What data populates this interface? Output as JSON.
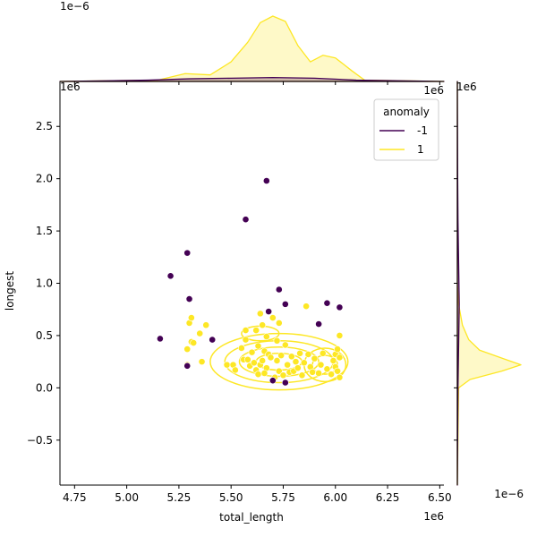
{
  "chart_data": {
    "type": "scatter",
    "title": "",
    "xlabel": "total_length",
    "ylabel": "longest",
    "x_offset_label": "1e6",
    "y_offset_label": "1e6",
    "top_marginal_offset_label": "1e−6",
    "right_marginal_offset_label": "1e−6",
    "right_marginal_top_label": "1e6",
    "xlim": [
      4.68,
      6.52
    ],
    "ylim": [
      -0.93,
      2.93
    ],
    "x_ticks": [
      4.75,
      5.0,
      5.25,
      5.5,
      5.75,
      6.0,
      6.25,
      6.5
    ],
    "x_tick_labels": [
      "4.75",
      "5.00",
      "5.25",
      "5.50",
      "5.75",
      "6.00",
      "6.25",
      "6.50"
    ],
    "y_ticks": [
      -0.5,
      0.0,
      0.5,
      1.0,
      1.5,
      2.0,
      2.5
    ],
    "y_tick_labels": [
      "−0.5",
      "0.0",
      "0.5",
      "1.0",
      "1.5",
      "2.0",
      "2.5"
    ],
    "legend": {
      "title": "anomaly",
      "placement": "top-right",
      "entries": [
        {
          "label": "-1",
          "color": "#440154"
        },
        {
          "label": "1",
          "color": "#fde725"
        }
      ]
    },
    "series": [
      {
        "name": "-1",
        "color": "#440154",
        "points": [
          [
            5.16,
            0.47
          ],
          [
            5.21,
            1.07
          ],
          [
            5.29,
            1.29
          ],
          [
            5.3,
            0.85
          ],
          [
            5.41,
            0.46
          ],
          [
            5.57,
            1.61
          ],
          [
            5.67,
            1.98
          ],
          [
            5.68,
            0.73
          ],
          [
            5.73,
            0.94
          ],
          [
            5.76,
            0.8
          ],
          [
            5.92,
            0.61
          ],
          [
            5.96,
            0.81
          ],
          [
            6.02,
            0.77
          ],
          [
            5.7,
            0.07
          ],
          [
            5.76,
            0.05
          ],
          [
            5.29,
            0.21
          ]
        ]
      },
      {
        "name": "1",
        "color": "#fde725",
        "points": [
          [
            5.29,
            0.22
          ],
          [
            5.29,
            0.37
          ],
          [
            5.3,
            0.62
          ],
          [
            5.31,
            0.67
          ],
          [
            5.31,
            0.44
          ],
          [
            5.32,
            0.43
          ],
          [
            5.35,
            0.52
          ],
          [
            5.36,
            0.25
          ],
          [
            5.38,
            0.6
          ],
          [
            5.48,
            0.22
          ],
          [
            5.51,
            0.22
          ],
          [
            5.52,
            0.17
          ],
          [
            5.55,
            0.38
          ],
          [
            5.56,
            0.27
          ],
          [
            5.57,
            0.46
          ],
          [
            5.58,
            0.27
          ],
          [
            5.59,
            0.21
          ],
          [
            5.6,
            0.34
          ],
          [
            5.61,
            0.24
          ],
          [
            5.62,
            0.55
          ],
          [
            5.62,
            0.17
          ],
          [
            5.63,
            0.13
          ],
          [
            5.63,
            0.4
          ],
          [
            5.64,
            0.71
          ],
          [
            5.64,
            0.22
          ],
          [
            5.65,
            0.26
          ],
          [
            5.65,
            0.6
          ],
          [
            5.66,
            0.35
          ],
          [
            5.67,
            0.49
          ],
          [
            5.67,
            0.19
          ],
          [
            5.68,
            0.32
          ],
          [
            5.69,
            0.29
          ],
          [
            5.7,
            0.67
          ],
          [
            5.71,
            0.1
          ],
          [
            5.72,
            0.26
          ],
          [
            5.72,
            0.45
          ],
          [
            5.73,
            0.16
          ],
          [
            5.73,
            0.62
          ],
          [
            5.74,
            0.31
          ],
          [
            5.75,
            0.12
          ],
          [
            5.76,
            0.41
          ],
          [
            5.77,
            0.22
          ],
          [
            5.78,
            0.15
          ],
          [
            5.79,
            0.3
          ],
          [
            5.8,
            0.16
          ],
          [
            5.81,
            0.25
          ],
          [
            5.82,
            0.19
          ],
          [
            5.83,
            0.33
          ],
          [
            5.84,
            0.12
          ],
          [
            5.85,
            0.24
          ],
          [
            5.86,
            0.78
          ],
          [
            5.87,
            0.32
          ],
          [
            5.88,
            0.2
          ],
          [
            5.89,
            0.15
          ],
          [
            5.9,
            0.28
          ],
          [
            5.92,
            0.14
          ],
          [
            5.93,
            0.22
          ],
          [
            5.94,
            0.33
          ],
          [
            5.96,
            0.18
          ],
          [
            5.98,
            0.13
          ],
          [
            5.99,
            0.26
          ],
          [
            6.0,
            0.32
          ],
          [
            6.0,
            0.2
          ],
          [
            6.01,
            0.37
          ],
          [
            6.01,
            0.16
          ],
          [
            6.02,
            0.5
          ],
          [
            6.02,
            0.29
          ],
          [
            6.02,
            0.1
          ],
          [
            5.57,
            0.55
          ],
          [
            5.66,
            0.14
          ]
        ]
      }
    ],
    "contours": [
      {
        "series": "1",
        "center": [
          5.73,
          0.25
        ],
        "radii": [
          [
            0.33,
            0.27
          ],
          [
            0.26,
            0.2
          ],
          [
            0.19,
            0.14
          ],
          [
            0.11,
            0.08
          ]
        ]
      },
      {
        "series": "1",
        "center": [
          5.95,
          0.22
        ],
        "radii": [
          [
            0.1,
            0.16
          ],
          [
            0.06,
            0.09
          ]
        ]
      },
      {
        "series": "1",
        "center": [
          5.64,
          0.52
        ],
        "radii": [
          [
            0.09,
            0.07
          ]
        ]
      }
    ],
    "marginal_x": {
      "series": [
        {
          "name": "1",
          "x": [
            4.68,
            5.15,
            5.28,
            5.4,
            5.5,
            5.58,
            5.64,
            5.7,
            5.76,
            5.82,
            5.88,
            5.94,
            6.0,
            6.08,
            6.14,
            6.52
          ],
          "density": [
            0,
            0.02,
            0.12,
            0.1,
            0.3,
            0.6,
            0.9,
            1.0,
            0.92,
            0.55,
            0.3,
            0.4,
            0.36,
            0.16,
            0.02,
            0
          ]
        },
        {
          "name": "-1",
          "x": [
            4.68,
            5.1,
            5.3,
            5.5,
            5.7,
            5.9,
            6.1,
            6.52
          ],
          "density": [
            0,
            0.02,
            0.04,
            0.05,
            0.06,
            0.05,
            0.02,
            0
          ]
        }
      ]
    },
    "marginal_y": {
      "series": [
        {
          "name": "1",
          "y": [
            -0.93,
            0.0,
            0.08,
            0.16,
            0.22,
            0.28,
            0.36,
            0.46,
            0.6,
            0.8,
            1.0,
            2.93
          ],
          "density": [
            0,
            0.02,
            0.2,
            0.7,
            1.0,
            0.72,
            0.35,
            0.18,
            0.08,
            0.02,
            0,
            0
          ]
        },
        {
          "name": "-1",
          "y": [
            -0.93,
            0.0,
            0.4,
            0.8,
            1.2,
            1.6,
            2.0,
            2.93
          ],
          "density": [
            0,
            0.01,
            0.02,
            0.03,
            0.02,
            0.01,
            0.005,
            0
          ]
        }
      ]
    }
  }
}
